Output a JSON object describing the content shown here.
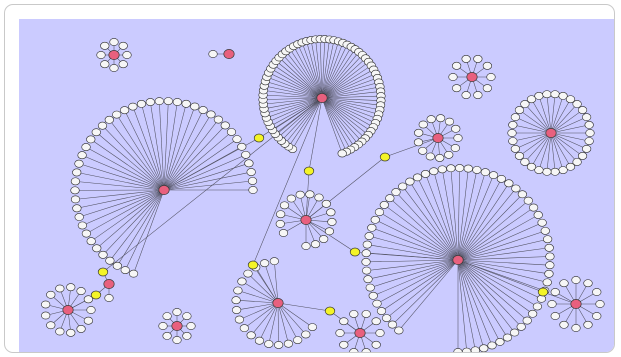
{
  "figure": {
    "background_color": "#cbcbff",
    "frame_color": "#ffffff",
    "node_colors": {
      "hub": "#e8607e",
      "bridge": "#f4f427",
      "leaf": "#f6f6f6",
      "edge": "#505060"
    },
    "node_legend": [],
    "leaf_label_text": "",
    "clusters": [
      {
        "id": "c1",
        "leaves": 8
      },
      {
        "id": "c2",
        "leaves": 1
      },
      {
        "id": "c3",
        "leaves": 44
      },
      {
        "id": "c4",
        "leaves": 10
      },
      {
        "id": "c5",
        "leaves": 30
      },
      {
        "id": "c6",
        "leaves": 70
      },
      {
        "id": "c7",
        "leaves": 13
      },
      {
        "id": "c8",
        "leaves": 60
      },
      {
        "id": "c9",
        "leaves": 15
      },
      {
        "id": "c10",
        "leaves": 1
      },
      {
        "id": "c11",
        "leaves": 13
      },
      {
        "id": "c12",
        "leaves": 8
      },
      {
        "id": "c13",
        "leaves": 18
      },
      {
        "id": "c14",
        "leaves": 10
      },
      {
        "id": "c15",
        "leaves": 12
      }
    ],
    "bridges": [
      {
        "id": "b1",
        "links": [
          "c3",
          "c6"
        ]
      },
      {
        "id": "b2",
        "links": [
          "c6",
          "c9"
        ]
      },
      {
        "id": "b3",
        "links": [
          "c9",
          "c7"
        ]
      },
      {
        "id": "b4",
        "links": [
          "c6",
          "c13"
        ]
      },
      {
        "id": "b5",
        "links": [
          "c13",
          "c14"
        ]
      },
      {
        "id": "b6",
        "links": [
          "c8",
          "c15"
        ]
      },
      {
        "id": "b7",
        "links": [
          "c6",
          "c10"
        ]
      },
      {
        "id": "b8",
        "links": [
          "c11",
          "c10"
        ]
      },
      {
        "id": "b9",
        "links": [
          "c9",
          "c8"
        ]
      }
    ]
  }
}
